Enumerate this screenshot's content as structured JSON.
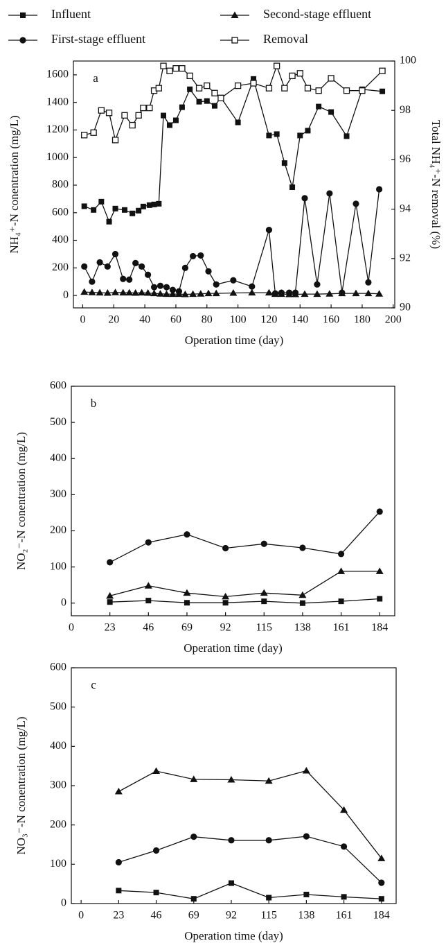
{
  "chart_data": [
    {
      "type": "line",
      "panel_label": "a",
      "xlabel": "Operation time (day)",
      "ylabel": "NH₄⁺-N conentration (mg/L)",
      "y2label": "Total NH₄⁺-N removal (%)",
      "xlim": [
        -6,
        201
      ],
      "xticks": [
        0,
        20,
        40,
        60,
        80,
        100,
        120,
        140,
        160,
        180,
        200
      ],
      "ylim": [
        -90,
        1700
      ],
      "yticks": [
        0,
        200,
        400,
        600,
        800,
        1000,
        1200,
        1400,
        1600
      ],
      "y2lim": [
        90,
        100
      ],
      "y2ticks": [
        90,
        92,
        94,
        96,
        98,
        100
      ],
      "series": [
        {
          "name": "Influent",
          "color": "#111111",
          "marker": "square",
          "x": [
            1,
            7,
            12,
            17,
            21,
            27,
            32,
            36,
            39,
            43,
            46,
            49,
            52,
            56,
            60,
            64,
            69,
            75,
            80,
            85,
            89,
            100,
            110,
            120,
            125,
            130,
            135,
            140,
            145,
            152,
            160,
            170,
            180,
            193
          ],
          "values": [
            647,
            620,
            680,
            535,
            630,
            620,
            595,
            615,
            645,
            655,
            660,
            665,
            1305,
            1235,
            1270,
            1365,
            1495,
            1405,
            1410,
            1375,
            1435,
            1255,
            1570,
            1160,
            1170,
            960,
            785,
            1160,
            1195,
            1370,
            1330,
            1155,
            1495,
            1480
          ]
        },
        {
          "name": "Second-stage effluent",
          "color": "#111111",
          "marker": "triangle",
          "x": [
            1,
            6,
            11,
            16,
            21,
            26,
            30,
            34,
            38,
            42,
            46,
            50,
            54,
            58,
            62,
            66,
            71,
            76,
            81,
            86,
            97,
            109,
            120,
            124,
            128,
            133,
            137,
            143,
            151,
            159,
            167,
            176,
            184,
            191
          ],
          "values": [
            25,
            22,
            20,
            18,
            22,
            20,
            20,
            18,
            20,
            18,
            15,
            12,
            10,
            10,
            10,
            8,
            10,
            12,
            15,
            15,
            18,
            20,
            20,
            10,
            10,
            8,
            8,
            10,
            10,
            12,
            15,
            15,
            15,
            12
          ]
        },
        {
          "name": "First-stage effluent",
          "color": "#111111",
          "marker": "circle",
          "x": [
            1,
            6,
            11,
            16,
            21,
            26,
            30,
            34,
            38,
            42,
            46,
            50,
            54,
            58,
            62,
            66,
            71,
            76,
            81,
            86,
            97,
            109,
            120,
            124,
            128,
            133,
            137,
            143,
            151,
            159,
            167,
            176,
            184,
            191
          ],
          "values": [
            210,
            100,
            240,
            210,
            300,
            120,
            115,
            235,
            210,
            150,
            60,
            70,
            60,
            40,
            30,
            200,
            285,
            290,
            175,
            80,
            110,
            65,
            475,
            15,
            20,
            20,
            20,
            705,
            80,
            740,
            20,
            665,
            95,
            770
          ]
        },
        {
          "name": "Removal",
          "color": "#111111",
          "marker": "open-square",
          "axis": "y2",
          "x": [
            1,
            7,
            12,
            17,
            21,
            27,
            32,
            36,
            39,
            43,
            46,
            49,
            52,
            56,
            60,
            64,
            69,
            75,
            80,
            85,
            89,
            100,
            110,
            120,
            125,
            130,
            135,
            140,
            145,
            152,
            160,
            170,
            180,
            193
          ],
          "values": [
            97.0,
            97.1,
            98.0,
            97.9,
            96.8,
            97.8,
            97.4,
            97.8,
            98.1,
            98.1,
            98.8,
            98.9,
            99.8,
            99.6,
            99.7,
            99.7,
            99.4,
            98.9,
            99.0,
            98.7,
            98.5,
            99.0,
            99.1,
            98.9,
            99.8,
            98.9,
            99.4,
            99.5,
            98.9,
            98.8,
            99.3,
            98.8,
            98.8,
            99.6
          ]
        }
      ]
    },
    {
      "type": "line",
      "panel_label": "b",
      "xlabel": "Operation time (day)",
      "ylabel": "NO₂⁻-N conentration (mg/L)",
      "xlim": [
        0,
        193
      ],
      "xticks": [
        0,
        23,
        46,
        69,
        92,
        115,
        138,
        161,
        184
      ],
      "ylim": [
        -35,
        600
      ],
      "yticks": [
        0,
        100,
        200,
        300,
        400,
        500,
        600
      ],
      "x": [
        23,
        46,
        69,
        92,
        115,
        138,
        161,
        184
      ],
      "series": [
        {
          "color": "#111111",
          "marker": "circle",
          "values": [
            113,
            168,
            190,
            152,
            164,
            153,
            136,
            253
          ]
        },
        {
          "color": "#111111",
          "marker": "triangle",
          "values": [
            20,
            48,
            28,
            18,
            28,
            22,
            88,
            88
          ]
        },
        {
          "color": "#111111",
          "marker": "square",
          "values": [
            3,
            7,
            1,
            1,
            5,
            0,
            5,
            12
          ]
        }
      ]
    },
    {
      "type": "line",
      "panel_label": "c",
      "xlabel": "Operation time (day)",
      "ylabel": "NO₃⁻-N conentration (mg/L)",
      "xlim": [
        -6,
        193
      ],
      "xticks": [
        0,
        23,
        46,
        69,
        92,
        115,
        138,
        161,
        184
      ],
      "ylim": [
        0,
        600
      ],
      "yticks": [
        0,
        100,
        200,
        300,
        400,
        500,
        600
      ],
      "x": [
        23,
        46,
        69,
        92,
        115,
        138,
        161,
        184
      ],
      "series": [
        {
          "color": "#111111",
          "marker": "triangle",
          "values": [
            285,
            337,
            316,
            315,
            312,
            338,
            238,
            115
          ]
        },
        {
          "color": "#111111",
          "marker": "circle",
          "values": [
            105,
            135,
            170,
            161,
            161,
            171,
            145,
            53
          ]
        },
        {
          "color": "#111111",
          "marker": "square",
          "values": [
            33,
            28,
            12,
            52,
            15,
            23,
            17,
            12
          ]
        }
      ]
    }
  ]
}
